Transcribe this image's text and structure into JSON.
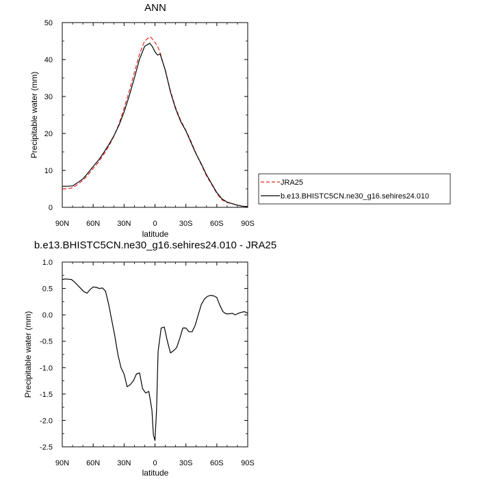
{
  "chart_data": [
    {
      "type": "line",
      "title": "ANN",
      "xlabel": "latitude",
      "ylabel": "Precipitable water (mm)",
      "xlim": [
        90,
        -90
      ],
      "ylim": [
        0,
        50
      ],
      "xticks": [
        90,
        60,
        30,
        0,
        -30,
        -60,
        -90
      ],
      "xtick_labels": [
        "90N",
        "60N",
        "30N",
        "0",
        "30S",
        "60S",
        "90S"
      ],
      "yticks": [
        0,
        10,
        20,
        30,
        40,
        50
      ],
      "ytick_labels": [
        "0",
        "10",
        "20",
        "30",
        "40",
        "50"
      ],
      "legend_position": "right",
      "series": [
        {
          "name": "JRA25",
          "color": "#e8211b",
          "dash": "dashed",
          "x": [
            90,
            85,
            80,
            75,
            70,
            65,
            60,
            55,
            50,
            45,
            40,
            35,
            30,
            25,
            20,
            15,
            10,
            5,
            2.5,
            0,
            -2.5,
            -5,
            -10,
            -15,
            -20,
            -25,
            -30,
            -35,
            -40,
            -45,
            -50,
            -55,
            -60,
            -65,
            -70,
            -75,
            -80,
            -85,
            -90
          ],
          "y": [
            5.0,
            5.0,
            5.3,
            6.2,
            7.3,
            8.8,
            10.5,
            12.2,
            14.2,
            16.5,
            19.2,
            22.5,
            26.8,
            31.5,
            36.5,
            41.5,
            45.0,
            46.2,
            45.6,
            44.6,
            43.6,
            41.8,
            37.0,
            31.5,
            27.0,
            23.5,
            20.8,
            17.8,
            14.5,
            11.5,
            8.5,
            6.2,
            3.8,
            2.0,
            1.3,
            1.0,
            0.6,
            0.3,
            0.2
          ]
        },
        {
          "name": "b.e13.BHISTC5CN.ne30_g16.sehires24.010",
          "color": "#000000",
          "dash": "solid",
          "x": [
            90,
            85,
            80,
            75,
            70,
            65,
            60,
            55,
            50,
            45,
            40,
            35,
            30,
            25,
            20,
            15,
            10,
            5,
            2.5,
            0,
            -2.5,
            -5,
            -10,
            -15,
            -20,
            -25,
            -30,
            -35,
            -40,
            -45,
            -50,
            -55,
            -60,
            -65,
            -70,
            -75,
            -80,
            -85,
            -90
          ],
          "y": [
            5.7,
            5.7,
            5.8,
            6.7,
            7.7,
            9.3,
            11.1,
            12.7,
            14.7,
            16.9,
            19.3,
            22.2,
            25.8,
            30.2,
            35.0,
            40.1,
            43.6,
            44.4,
            43.5,
            42.1,
            41.2,
            41.5,
            37.1,
            31.2,
            26.7,
            23.2,
            20.7,
            17.5,
            14.4,
            11.7,
            8.8,
            6.4,
            4.0,
            2.3,
            1.4,
            1.0,
            0.6,
            0.3,
            0.2
          ]
        }
      ]
    },
    {
      "type": "line",
      "title": "b.e13.BHISTC5CN.ne30_g16.sehires24.010 - JRA25",
      "xlabel": "latitude",
      "ylabel": "Precipitable water (mm)",
      "xlim": [
        90,
        -90
      ],
      "ylim": [
        -2.5,
        1.0
      ],
      "xticks": [
        90,
        60,
        30,
        0,
        -30,
        -60,
        -90
      ],
      "xtick_labels": [
        "90N",
        "60N",
        "30N",
        "0",
        "30S",
        "60S",
        "90S"
      ],
      "yticks": [
        -2.5,
        -2.0,
        -1.5,
        -1.0,
        -0.5,
        0.0,
        0.5,
        1.0
      ],
      "ytick_labels": [
        "-2.5",
        "-2.0",
        "-1.5",
        "-1.0",
        "-0.5",
        "0.0",
        "0.5",
        "1.0"
      ],
      "series": [
        {
          "name": "",
          "color": "#000000",
          "dash": "solid",
          "x": [
            90,
            87,
            81,
            78,
            75,
            72,
            69,
            66,
            63,
            60,
            57,
            54,
            51,
            48,
            45,
            42,
            39,
            36,
            33,
            30,
            27,
            24,
            21,
            18,
            15,
            12,
            9,
            6,
            3,
            1.5,
            0,
            -1.5,
            -3,
            -6,
            -9,
            -12,
            -15,
            -18,
            -21,
            -24,
            -27,
            -30,
            -33,
            -36,
            -39,
            -42,
            -45,
            -48,
            -51,
            -54,
            -57,
            -60,
            -63,
            -66,
            -69,
            -72,
            -75,
            -78,
            -81,
            -84,
            -87,
            -90
          ],
          "y": [
            0.67,
            0.68,
            0.67,
            0.62,
            0.56,
            0.5,
            0.44,
            0.41,
            0.48,
            0.53,
            0.52,
            0.5,
            0.51,
            0.45,
            0.2,
            -0.1,
            -0.4,
            -0.75,
            -1.0,
            -1.12,
            -1.36,
            -1.32,
            -1.25,
            -1.12,
            -1.1,
            -1.4,
            -1.48,
            -1.45,
            -1.8,
            -2.28,
            -2.38,
            -1.8,
            -0.7,
            -0.25,
            -0.23,
            -0.5,
            -0.72,
            -0.68,
            -0.62,
            -0.45,
            -0.25,
            -0.25,
            -0.32,
            -0.32,
            -0.2,
            0.0,
            0.2,
            0.3,
            0.35,
            0.37,
            0.36,
            0.33,
            0.18,
            0.06,
            0.02,
            0.02,
            0.03,
            0.0,
            0.03,
            0.05,
            0.06,
            0.03
          ]
        }
      ]
    }
  ]
}
